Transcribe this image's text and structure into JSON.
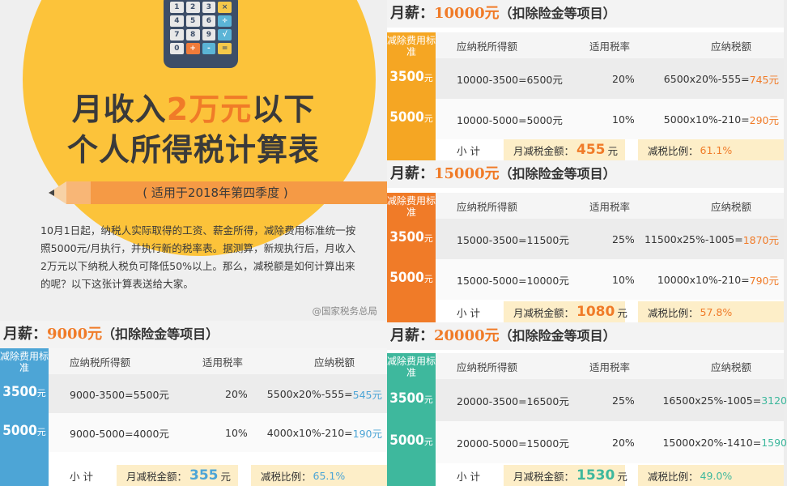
{
  "intro": {
    "title_a": "月收入",
    "title_highlight": "2万元",
    "title_b": "以下",
    "title_line2": "个人所得税计算表",
    "scope": "( 适用于2018年第四季度 )",
    "body": "10月1日起，纳税人实际取得的工资、薪金所得，减除费用标准统一按照5000元/月执行，并执行新的税率表。据测算，新规执行后，月收入2万元以下纳税人税负可降低50%以上。那么，减税额是如何计算出来的呢？以下这张计算表送给大家。",
    "source": "@国家税务总局",
    "calc_keys": [
      "1",
      "2",
      "3",
      "×",
      "4",
      "5",
      "6",
      "÷",
      "7",
      "8",
      "9",
      "√",
      "0",
      "+",
      "-",
      "="
    ]
  },
  "common": {
    "title_prefix": "月薪：",
    "title_suffix": "（扣除险金等项目）",
    "side_caption": "减除费用标准",
    "col_income": "应纳税所得额",
    "col_rate": "适用税率",
    "col_tax": "应纳税额",
    "subtotal": "小 计",
    "saving_label": "月减税金额：",
    "unit": "元",
    "ratio_label": "减税比例：",
    "yuan": "元"
  },
  "panels": {
    "p9000": {
      "amount": "9000元",
      "d1": "3500",
      "d2": "5000",
      "r1": {
        "income": "9000-3500=5500元",
        "rate": "20%",
        "tax_expr": "5500x20%-555=",
        "tax_val": "545元"
      },
      "r2": {
        "income": "9000-5000=4000元",
        "rate": "10%",
        "tax_expr": "4000x10%-210=",
        "tax_val": "190元"
      },
      "saving": "355",
      "ratio": "65.1%"
    },
    "p10000": {
      "amount": "10000元",
      "d1": "3500",
      "d2": "5000",
      "r1": {
        "income": "10000-3500=6500元",
        "rate": "20%",
        "tax_expr": "6500x20%-555=",
        "tax_val": "745元"
      },
      "r2": {
        "income": "10000-5000=5000元",
        "rate": "10%",
        "tax_expr": "5000x10%-210=",
        "tax_val": "290元"
      },
      "saving": "455",
      "ratio": "61.1%"
    },
    "p15000": {
      "amount": "15000元",
      "d1": "3500",
      "d2": "5000",
      "r1": {
        "income": "15000-3500=11500元",
        "rate": "25%",
        "tax_expr": "11500x25%-1005=",
        "tax_val": "1870元"
      },
      "r2": {
        "income": "15000-5000=10000元",
        "rate": "10%",
        "tax_expr": "10000x10%-210=",
        "tax_val": "790元"
      },
      "saving": "1080",
      "ratio": "57.8%"
    },
    "p20000": {
      "amount": "20000元",
      "d1": "3500",
      "d2": "5000",
      "r1": {
        "income": "20000-3500=16500元",
        "rate": "25%",
        "tax_expr": "16500x25%-1005=",
        "tax_val": "3120"
      },
      "r2": {
        "income": "20000-5000=15000元",
        "rate": "20%",
        "tax_expr": "15000x20%-1410=",
        "tax_val": "1590"
      },
      "saving": "1530",
      "ratio": "49.0%"
    }
  },
  "colors": {
    "yellow_circle": "#fcc33a",
    "accent_orange": "#f07b28",
    "side_9000": "#4da5d6",
    "side_10000": "#f5a623",
    "side_15000": "#f07b28",
    "side_20000": "#3eb89d"
  }
}
